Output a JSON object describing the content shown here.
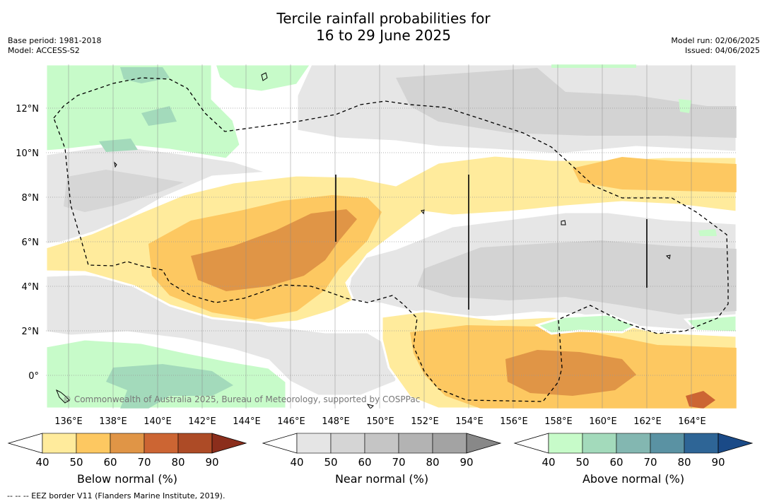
{
  "title": {
    "line1": "Tercile rainfall probabilities for",
    "line2": "16 to 29 June 2025"
  },
  "meta": {
    "base_period": "Base period: 1981-2018",
    "model": "Model: ACCESS-S2",
    "model_run": "Model run: 02/06/2025",
    "issued": "Issued: 04/06/2025"
  },
  "axes": {
    "lat_labels": [
      "12°N",
      "10°N",
      "8°N",
      "6°N",
      "4°N",
      "2°N",
      "0°"
    ],
    "lon_labels": [
      "136°E",
      "138°E",
      "140°E",
      "142°E",
      "144°E",
      "146°E",
      "148°E",
      "150°E",
      "152°E",
      "154°E",
      "156°E",
      "158°E",
      "160°E",
      "162°E",
      "164°E"
    ]
  },
  "copyright": "© Commonwealth of Australia 2025, Bureau of Meteorology, supported by COSPPac",
  "colorbars": [
    {
      "title": "Below normal (%)",
      "ticks": [
        "40",
        "50",
        "60",
        "70",
        "80",
        "90"
      ],
      "colors": [
        "#ffeb9c",
        "#fdc861",
        "#e09546",
        "#cc6533",
        "#ad4b26",
        "#8b2e1c"
      ]
    },
    {
      "title": "Near normal (%)",
      "ticks": [
        "40",
        "50",
        "60",
        "70",
        "80",
        "90"
      ],
      "colors": [
        "#e5e5e5",
        "#d5d5d5",
        "#c5c5c5",
        "#b3b3b3",
        "#a3a3a3",
        "#888888"
      ]
    },
    {
      "title": "Above normal (%)",
      "ticks": [
        "40",
        "50",
        "60",
        "70",
        "80",
        "90"
      ],
      "colors": [
        "#c7fbc9",
        "#a3dabb",
        "#83b7b1",
        "#5a92a3",
        "#2e6596",
        "#1a4a87"
      ]
    }
  ],
  "footnote": "--  --  -- EEZ border V11 (Flanders Marine Institute, 2019)."
}
